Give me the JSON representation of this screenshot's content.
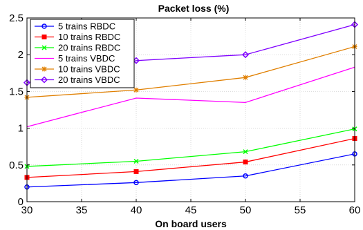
{
  "chart_data": {
    "type": "line",
    "title": "Packet loss (%)",
    "xlabel": "On board users",
    "ylabel": "",
    "x": [
      30,
      40,
      50,
      60
    ],
    "xlim": [
      30,
      60
    ],
    "ylim": [
      0,
      2.5
    ],
    "xticks": [
      30,
      35,
      40,
      45,
      50,
      55,
      60
    ],
    "yticks": [
      0,
      0.5,
      1,
      1.5,
      2,
      2.5
    ],
    "ytick_labels": [
      "0",
      "0.5",
      "1",
      "1.5",
      "2",
      "2.5"
    ],
    "grid": true,
    "legend_position": "top-left",
    "series": [
      {
        "name": "5 trains RBDC",
        "values": [
          0.2,
          0.26,
          0.35,
          0.65
        ],
        "color": "#0000ff",
        "marker": "circle"
      },
      {
        "name": "10 trains RBDC",
        "values": [
          0.33,
          0.41,
          0.54,
          0.86
        ],
        "color": "#ff0000",
        "marker": "square"
      },
      {
        "name": "20 trains RBDC",
        "values": [
          0.48,
          0.55,
          0.68,
          0.99
        ],
        "color": "#00ff00",
        "marker": "x"
      },
      {
        "name": "5 trains VBDC",
        "values": [
          1.02,
          1.41,
          1.35,
          1.83
        ],
        "color": "#ff00ff",
        "marker": "none"
      },
      {
        "name": "10 trains VBDC",
        "values": [
          1.42,
          1.52,
          1.69,
          2.11
        ],
        "color": "#e07f00",
        "marker": "asterisk"
      },
      {
        "name": "20 trains VBDC",
        "values": [
          1.62,
          1.92,
          2.0,
          2.41
        ],
        "color": "#8000ff",
        "marker": "diamond"
      }
    ]
  }
}
